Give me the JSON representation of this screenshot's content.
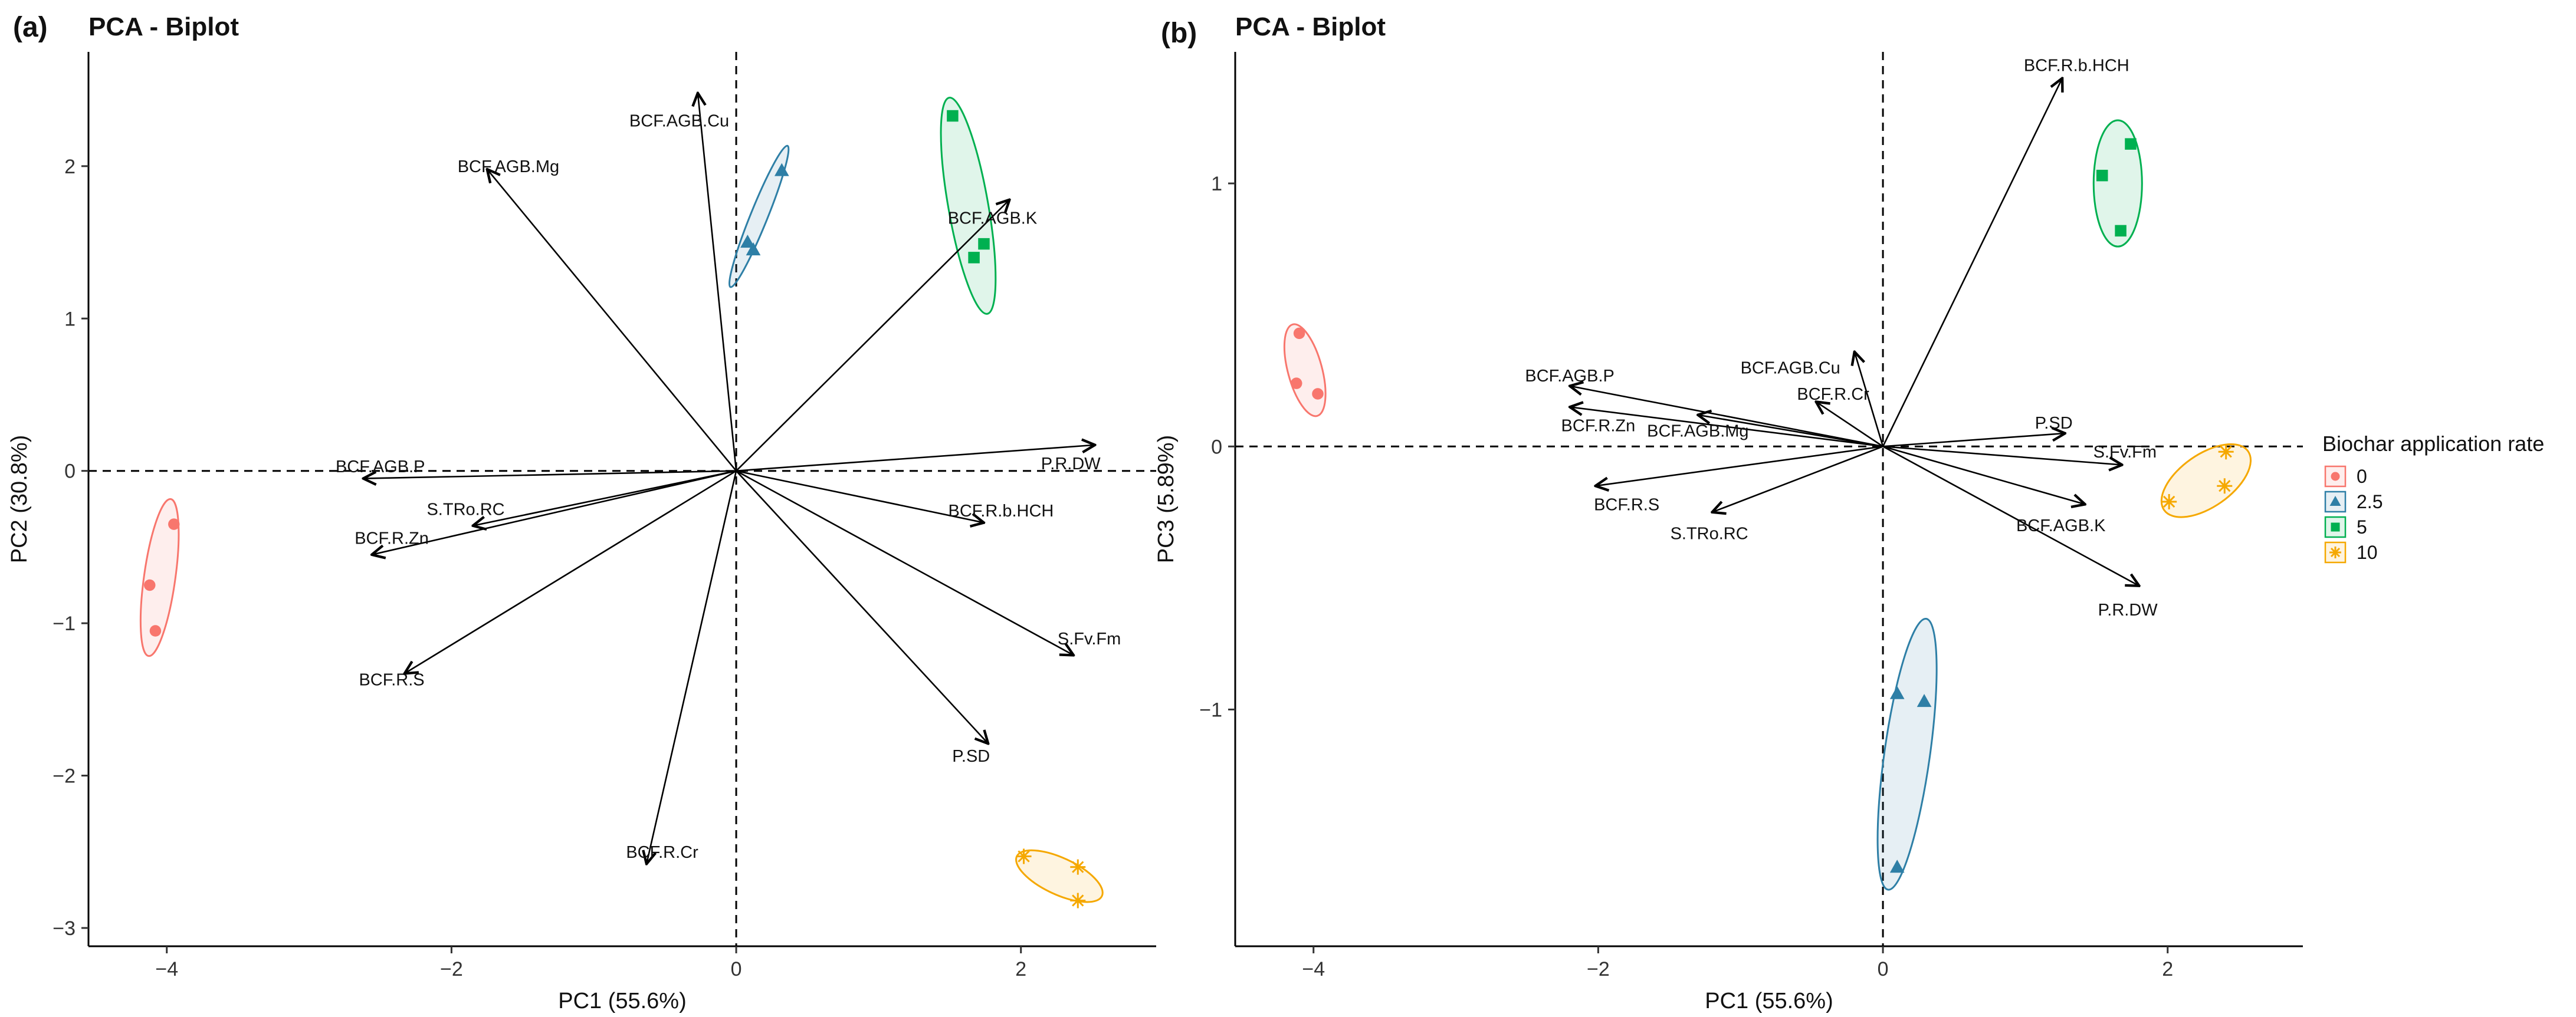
{
  "legend": {
    "title": "Biochar application rate",
    "groups": [
      {
        "label": "0",
        "color": "#F8766D",
        "shape": "circle"
      },
      {
        "label": "2.5",
        "color": "#2E7FA6",
        "shape": "triangle"
      },
      {
        "label": "5",
        "color": "#00B050",
        "shape": "square"
      },
      {
        "label": "10",
        "color": "#F5A800",
        "shape": "asterisk"
      }
    ]
  },
  "chart_data": [
    {
      "panel": "(a)",
      "type": "scatter",
      "title": "PCA - Biplot",
      "xlabel": "PC1 (55.6%)",
      "ylabel": "PC2 (30.8%)",
      "xlim": [
        -4.55,
        2.95
      ],
      "ylim": [
        -3.12,
        2.75
      ],
      "xticks": [
        -4,
        -2,
        0,
        2
      ],
      "yticks": [
        -3,
        -2,
        -1,
        0,
        1,
        2
      ],
      "tick_labels_x": [
        "−4",
        "−2",
        "0",
        "2"
      ],
      "tick_labels_y": [
        "−3",
        "−2",
        "−1",
        "0",
        "1",
        "2"
      ],
      "reference_lines": {
        "x": 0,
        "y": 0,
        "style": "dashed"
      },
      "series": [
        {
          "name": "0",
          "points": [
            [
              -4.12,
              -0.75
            ],
            [
              -4.08,
              -1.05
            ],
            [
              -3.95,
              -0.35
            ]
          ],
          "ellipse": {
            "cx": -4.05,
            "cy": -0.7,
            "rx": 0.11,
            "ry": 0.52,
            "angle": 8
          }
        },
        {
          "name": "2.5",
          "points": [
            [
              0.08,
              1.5
            ],
            [
              0.12,
              1.45
            ],
            [
              0.32,
              1.97
            ]
          ],
          "ellipse": {
            "cx": 0.16,
            "cy": 1.67,
            "rx": 0.06,
            "ry": 0.5,
            "angle": 22
          }
        },
        {
          "name": "5",
          "points": [
            [
              1.52,
              2.33
            ],
            [
              1.67,
              1.4
            ],
            [
              1.74,
              1.49
            ]
          ],
          "ellipse": {
            "cx": 1.63,
            "cy": 1.74,
            "rx": 0.14,
            "ry": 0.72,
            "angle": -10
          }
        },
        {
          "name": "10",
          "points": [
            [
              2.02,
              -2.53
            ],
            [
              2.4,
              -2.6
            ],
            [
              2.4,
              -2.82
            ]
          ],
          "ellipse": {
            "cx": 2.27,
            "cy": -2.66,
            "rx": 0.33,
            "ry": 0.12,
            "angle": 25
          }
        }
      ],
      "loadings": [
        {
          "label": "BCF.AGB.Cu",
          "x": -0.27,
          "y": 2.48,
          "label_xy": [
            -0.4,
            2.3
          ]
        },
        {
          "label": "BCF.AGB.Mg",
          "x": -1.75,
          "y": 1.98,
          "label_xy": [
            -1.6,
            2.0
          ]
        },
        {
          "label": "BCF.AGB.K",
          "x": 1.92,
          "y": 1.78,
          "label_xy": [
            1.8,
            1.66
          ]
        },
        {
          "label": "P.R.DW",
          "x": 2.52,
          "y": 0.17,
          "label_xy": [
            2.35,
            0.05
          ]
        },
        {
          "label": "BCF.AGB.P",
          "x": -2.62,
          "y": -0.05,
          "label_xy": [
            -2.5,
            0.03
          ]
        },
        {
          "label": "S.TRo.RC",
          "x": -1.85,
          "y": -0.36,
          "label_xy": [
            -1.9,
            -0.25
          ]
        },
        {
          "label": "BCF.R.Zn",
          "x": -2.56,
          "y": -0.55,
          "label_xy": [
            -2.42,
            -0.44
          ]
        },
        {
          "label": "BCF.R.b.HCH",
          "x": 1.74,
          "y": -0.34,
          "label_xy": [
            1.86,
            -0.26
          ]
        },
        {
          "label": "BCF.R.S",
          "x": -2.33,
          "y": -1.33,
          "label_xy": [
            -2.42,
            -1.37
          ]
        },
        {
          "label": "S.Fv.Fm",
          "x": 2.37,
          "y": -1.21,
          "label_xy": [
            2.48,
            -1.1
          ]
        },
        {
          "label": "P.SD",
          "x": 1.77,
          "y": -1.79,
          "label_xy": [
            1.65,
            -1.87
          ]
        },
        {
          "label": "BCF.R.Cr",
          "x": -0.63,
          "y": -2.58,
          "label_xy": [
            -0.52,
            -2.5
          ]
        }
      ]
    },
    {
      "panel": "(b)",
      "type": "scatter",
      "title": "PCA - Biplot",
      "xlabel": "PC1 (55.6%)",
      "ylabel": "PC3 (5.89%)",
      "xlim": [
        -4.55,
        2.95
      ],
      "ylim": [
        -1.9,
        1.5
      ],
      "xticks": [
        -4,
        -2,
        0,
        2
      ],
      "yticks": [
        -1,
        0,
        1
      ],
      "tick_labels_x": [
        "−4",
        "−2",
        "0",
        "2"
      ],
      "tick_labels_y": [
        "−1",
        "0",
        "1"
      ],
      "reference_lines": {
        "x": 0,
        "y": 0,
        "style": "dashed"
      },
      "series": [
        {
          "name": "0",
          "points": [
            [
              -4.1,
              0.43
            ],
            [
              -4.12,
              0.24
            ],
            [
              -3.97,
              0.2
            ]
          ],
          "ellipse": {
            "cx": -4.06,
            "cy": 0.29,
            "rx": 0.12,
            "ry": 0.18,
            "angle": -15
          }
        },
        {
          "name": "2.5",
          "points": [
            [
              0.1,
              -0.94
            ],
            [
              0.29,
              -0.97
            ],
            [
              0.1,
              -1.6
            ]
          ],
          "ellipse": {
            "cx": 0.17,
            "cy": -1.17,
            "rx": 0.16,
            "ry": 0.52,
            "angle": 8
          }
        },
        {
          "name": "5",
          "points": [
            [
              1.54,
              1.03
            ],
            [
              1.74,
              1.15
            ],
            [
              1.67,
              0.82
            ]
          ],
          "ellipse": {
            "cx": 1.65,
            "cy": 1.0,
            "rx": 0.17,
            "ry": 0.24,
            "angle": 0
          }
        },
        {
          "name": "10",
          "points": [
            [
              2.41,
              -0.02
            ],
            [
              2.01,
              -0.21
            ],
            [
              2.4,
              -0.15
            ]
          ],
          "ellipse": {
            "cx": 2.27,
            "cy": -0.13,
            "rx": 0.36,
            "ry": 0.1,
            "angle": -35
          }
        }
      ],
      "loadings": [
        {
          "label": "BCF.R.b.HCH",
          "x": 1.26,
          "y": 1.4,
          "label_xy": [
            1.36,
            1.45
          ]
        },
        {
          "label": "BCF.AGB.Cu",
          "x": -0.2,
          "y": 0.36,
          "label_xy": [
            -0.65,
            0.3
          ]
        },
        {
          "label": "BCF.R.Cr",
          "x": -0.47,
          "y": 0.17,
          "label_xy": [
            -0.35,
            0.2
          ]
        },
        {
          "label": "BCF.AGB.P",
          "x": -2.2,
          "y": 0.23,
          "label_xy": [
            -2.2,
            0.27
          ]
        },
        {
          "label": "BCF.R.Zn",
          "x": -2.2,
          "y": 0.15,
          "label_xy": [
            -2.0,
            0.08
          ]
        },
        {
          "label": "BCF.AGB.Mg",
          "x": -1.3,
          "y": 0.12,
          "label_xy": [
            -1.3,
            0.06
          ]
        },
        {
          "label": "P.SD",
          "x": 1.28,
          "y": 0.05,
          "label_xy": [
            1.2,
            0.09
          ]
        },
        {
          "label": "S.Fv.Fm",
          "x": 1.68,
          "y": -0.07,
          "label_xy": [
            1.7,
            -0.02
          ]
        },
        {
          "label": "BCF.R.S",
          "x": -2.02,
          "y": -0.15,
          "label_xy": [
            -1.8,
            -0.22
          ]
        },
        {
          "label": "S.TRo.RC",
          "x": -1.2,
          "y": -0.25,
          "label_xy": [
            -1.22,
            -0.33
          ]
        },
        {
          "label": "BCF.AGB.K",
          "x": 1.42,
          "y": -0.22,
          "label_xy": [
            1.25,
            -0.3
          ]
        },
        {
          "label": "P.R.DW",
          "x": 1.8,
          "y": -0.53,
          "label_xy": [
            1.72,
            -0.62
          ]
        }
      ]
    }
  ]
}
